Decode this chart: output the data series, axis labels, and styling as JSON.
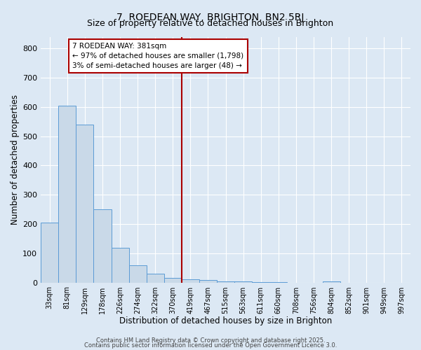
{
  "title": "7, ROEDEAN WAY, BRIGHTON, BN2 5RJ",
  "subtitle": "Size of property relative to detached houses in Brighton",
  "xlabel": "Distribution of detached houses by size in Brighton",
  "ylabel": "Number of detached properties",
  "bin_labels": [
    "33sqm",
    "81sqm",
    "129sqm",
    "178sqm",
    "226sqm",
    "274sqm",
    "322sqm",
    "370sqm",
    "419sqm",
    "467sqm",
    "515sqm",
    "563sqm",
    "611sqm",
    "660sqm",
    "708sqm",
    "756sqm",
    "804sqm",
    "852sqm",
    "901sqm",
    "949sqm",
    "997sqm"
  ],
  "bar_values": [
    205,
    605,
    540,
    250,
    118,
    58,
    30,
    15,
    12,
    8,
    3,
    3,
    2,
    1,
    0,
    0,
    5,
    0,
    0,
    0,
    0
  ],
  "bar_color": "#c9d9e8",
  "bar_edge_color": "#5b9bd5",
  "vline_x": 7.5,
  "vline_color": "#aa0000",
  "annotation_text": "7 ROEDEAN WAY: 381sqm\n← 97% of detached houses are smaller (1,798)\n3% of semi-detached houses are larger (48) →",
  "annotation_box_color": "#ffffff",
  "annotation_box_edge": "#aa0000",
  "ylim": [
    0,
    840
  ],
  "yticks": [
    0,
    100,
    200,
    300,
    400,
    500,
    600,
    700,
    800
  ],
  "footer1": "Contains HM Land Registry data © Crown copyright and database right 2025.",
  "footer2": "Contains public sector information licensed under the Open Government Licence 3.0.",
  "background_color": "#dce8f4",
  "plot_bg_color": "#dce8f4",
  "title_fontsize": 10,
  "subtitle_fontsize": 9
}
